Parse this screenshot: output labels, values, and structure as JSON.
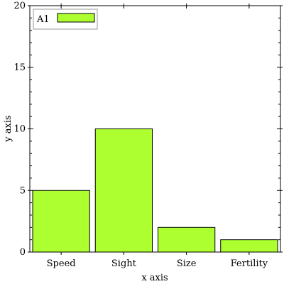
{
  "chart_data": {
    "type": "bar",
    "title": "",
    "xlabel": "x axis",
    "ylabel": "y axis",
    "categories": [
      "Speed",
      "Sight",
      "Size",
      "Fertility"
    ],
    "series": [
      {
        "name": "A1",
        "values": [
          5,
          10,
          2,
          1
        ],
        "color": "#adff2f"
      }
    ],
    "ylim": [
      0,
      20
    ],
    "yticks": [
      0,
      5,
      10,
      15,
      20
    ],
    "grid": false,
    "legend": "top-left"
  }
}
